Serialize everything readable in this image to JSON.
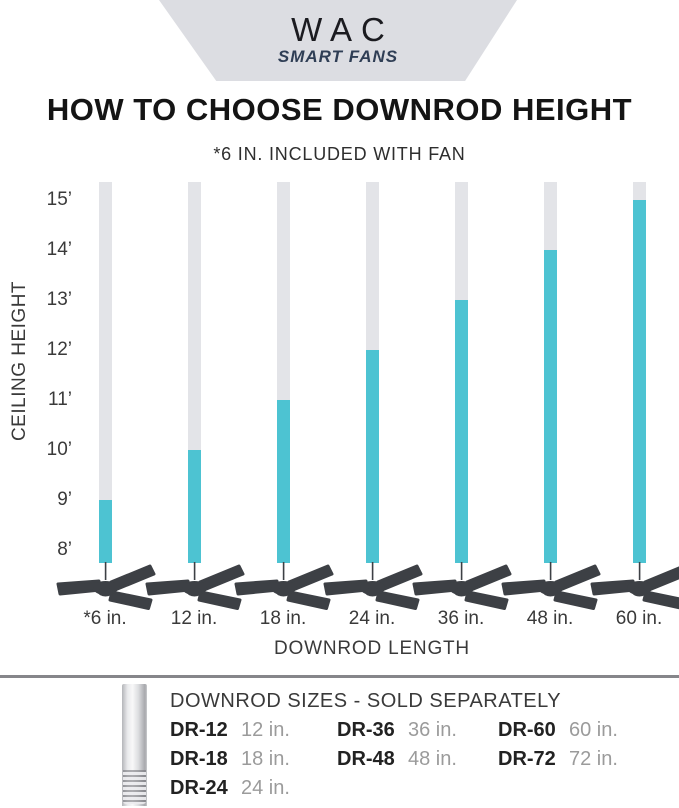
{
  "logo": {
    "brand": "WAC",
    "tagline": "SMART FANS"
  },
  "title": "HOW TO CHOOSE DOWNROD HEIGHT",
  "subtitle": "*6 IN. INCLUDED WITH FAN",
  "chart_data": {
    "type": "bar",
    "title": "HOW TO CHOOSE DOWNROD HEIGHT",
    "subtitle": "*6 IN. INCLUDED WITH FAN",
    "xlabel": "DOWNROD LENGTH",
    "ylabel": "CEILING HEIGHT",
    "categories": [
      "*6 in.",
      "12 in.",
      "18 in.",
      "24 in.",
      "36 in.",
      "48 in.",
      "60 in."
    ],
    "values": [
      9,
      10,
      11,
      12,
      13,
      14,
      15
    ],
    "value_meaning": "recommended ceiling height in feet for each downrod length",
    "y_ticks": [
      "15’",
      "14’",
      "13’",
      "12’",
      "11’",
      "10’",
      "9’",
      "8’"
    ],
    "ylim": [
      8,
      15
    ],
    "grid": false,
    "legend": "none",
    "marker_icon": "ceiling-fan-icon",
    "colors": {
      "rod_total": "#e3e4e8",
      "rod_highlight": "#4dc3d2",
      "fan": "#3d4045",
      "axis_text": "#3a3a3a"
    }
  },
  "footer": {
    "heading": "DOWNROD SIZES - SOLD SEPARATELY",
    "rod_image": "chrome-downrod-photo",
    "columns": [
      [
        {
          "code": "DR-12",
          "size": "12 in."
        },
        {
          "code": "DR-18",
          "size": "18 in."
        },
        {
          "code": "DR-24",
          "size": "24 in."
        }
      ],
      [
        {
          "code": "DR-36",
          "size": "36 in."
        },
        {
          "code": "DR-48",
          "size": "48 in."
        }
      ],
      [
        {
          "code": "DR-60",
          "size": "60 in."
        },
        {
          "code": "DR-72",
          "size": "72 in."
        }
      ]
    ]
  }
}
